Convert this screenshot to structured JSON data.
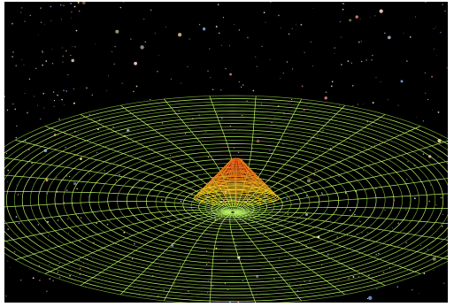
{
  "image": {
    "subject": "gravity-well",
    "colors": {
      "background": "#000000",
      "frame": "#ffffff",
      "grid": "#b8f060",
      "grid_dim": "#6e9a32",
      "peak_top": "#e02010",
      "peak_mid": "#f08a18",
      "peak_base": "#e8f020",
      "star_colors": [
        "#ffffff",
        "#ffd8d0",
        "#ff9a8a",
        "#cfe0ff",
        "#8ab4ff",
        "#ffe9a0"
      ]
    }
  }
}
